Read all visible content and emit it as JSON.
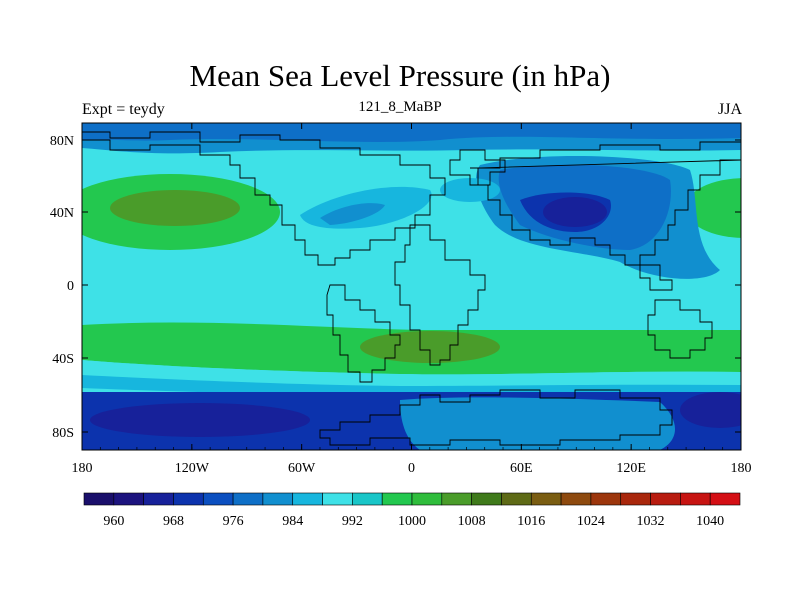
{
  "title": "Mean Sea Level Pressure (in hPa)",
  "left_string": "Expt = teydy",
  "center_string": "121_8_MaBP",
  "right_string": "JJA",
  "lat_ticks": [
    "80N",
    "40N",
    "0",
    "40S",
    "80S"
  ],
  "lon_ticks": [
    "180",
    "120W",
    "60W",
    "0",
    "60E",
    "120E",
    "180"
  ],
  "colorbar": {
    "labels": [
      "960",
      "968",
      "976",
      "984",
      "992",
      "1000",
      "1008",
      "1016",
      "1024",
      "1032",
      "1040"
    ],
    "colors": [
      "#1a0f6b",
      "#1c137e",
      "#17219a",
      "#0c33ad",
      "#0b4fc0",
      "#0e6fc7",
      "#118fcf",
      "#17b6de",
      "#3ee1e7",
      "#19c6c8",
      "#23c84f",
      "#2fbd3c",
      "#4a9c2a",
      "#3f7a1b",
      "#5e6a16",
      "#7a5d12",
      "#8e4a0f",
      "#9c360c",
      "#a9270c",
      "#b81c10",
      "#c71412",
      "#d40f15"
    ]
  },
  "regions": [
    {
      "name": "arctic-band",
      "color": "#0e6fc7"
    },
    {
      "name": "north-atlantic-high",
      "color": "#23c84f"
    },
    {
      "name": "north-atlantic-high-core",
      "color": "#4a9c2a"
    },
    {
      "name": "asian-low",
      "color": "#0c33ad"
    },
    {
      "name": "asian-low-core",
      "color": "#17219a"
    },
    {
      "name": "tropical-band",
      "color": "#3ee1e7"
    },
    {
      "name": "southern-high-belt",
      "color": "#23c84f"
    },
    {
      "name": "southern-high-core",
      "color": "#4a9c2a"
    },
    {
      "name": "southern-ocean",
      "color": "#0c33ad"
    },
    {
      "name": "antarctic-low",
      "color": "#17219a"
    }
  ]
}
